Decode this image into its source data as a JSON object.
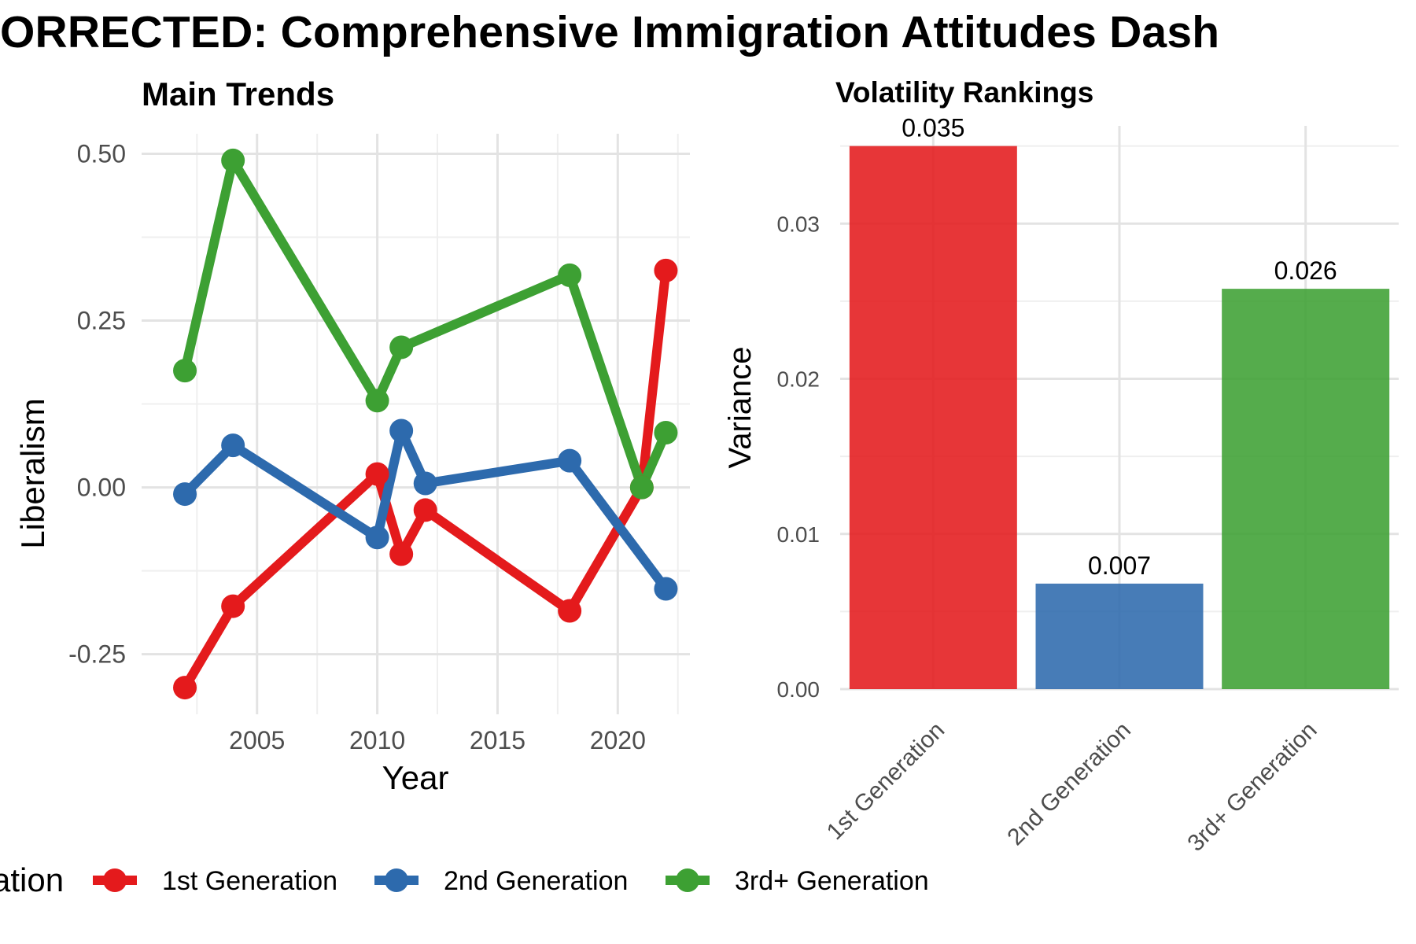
{
  "dashboard_title": "ORRECTED: Comprehensive Immigration Attitudes Dash",
  "legend": {
    "title": "ation",
    "entries": [
      {
        "label": "1st Generation",
        "color": "#e41a1c"
      },
      {
        "label": "2nd Generation",
        "color": "#2d6aad"
      },
      {
        "label": "3rd+ Generation",
        "color": "#3da033"
      }
    ]
  },
  "chart_data": [
    {
      "type": "line",
      "title": "Main Trends",
      "xlabel": "Year",
      "ylabel": "Liberalism",
      "xlim": [
        2000.2,
        2023.0
      ],
      "ylim": [
        -0.34,
        0.53
      ],
      "xticks": [
        2005,
        2010,
        2015,
        2020
      ],
      "xtick_labels": [
        "2005",
        "2010",
        "2015",
        "2020"
      ],
      "yticks": [
        -0.25,
        0.0,
        0.25,
        0.5
      ],
      "ytick_labels": [
        "-0.25",
        "0.00",
        "0.25",
        "0.50"
      ],
      "grid": true,
      "series": [
        {
          "name": "1st Generation",
          "color": "#e41a1c",
          "points": [
            [
              2002,
              -0.3
            ],
            [
              2004,
              -0.178
            ],
            [
              2010,
              0.02
            ],
            [
              2011,
              -0.1
            ],
            [
              2012,
              -0.034
            ],
            [
              2018,
              -0.185
            ],
            [
              2021,
              0.0
            ],
            [
              2022,
              0.325
            ]
          ]
        },
        {
          "name": "2nd Generation",
          "color": "#2d6aad",
          "points": [
            [
              2002,
              -0.01
            ],
            [
              2004,
              0.063
            ],
            [
              2010,
              -0.075
            ],
            [
              2011,
              0.085
            ],
            [
              2012,
              0.006
            ],
            [
              2018,
              0.04
            ],
            [
              2022,
              -0.152
            ]
          ]
        },
        {
          "name": "3rd+ Generation",
          "color": "#3da033",
          "points": [
            [
              2002,
              0.175
            ],
            [
              2004,
              0.49
            ],
            [
              2010,
              0.13
            ],
            [
              2011,
              0.21
            ],
            [
              2018,
              0.318
            ],
            [
              2021,
              0.0
            ],
            [
              2022,
              0.082
            ]
          ]
        }
      ]
    },
    {
      "type": "bar",
      "title": "Volatility Rankings",
      "xlabel": "",
      "ylabel": "Variance",
      "ylim": [
        0,
        0.0363
      ],
      "yticks": [
        0.0,
        0.01,
        0.02,
        0.03
      ],
      "ytick_labels": [
        "0.00",
        "0.01",
        "0.02",
        "0.03"
      ],
      "categories": [
        "1st Generation",
        "2nd Generation",
        "3rd+ Generation"
      ],
      "values": [
        0.035,
        0.0068,
        0.0258
      ],
      "value_labels": [
        "0.035",
        "0.007",
        "0.026"
      ],
      "colors": [
        "#e41a1c",
        "#2d6aad",
        "#3da033"
      ],
      "grid": true
    }
  ]
}
